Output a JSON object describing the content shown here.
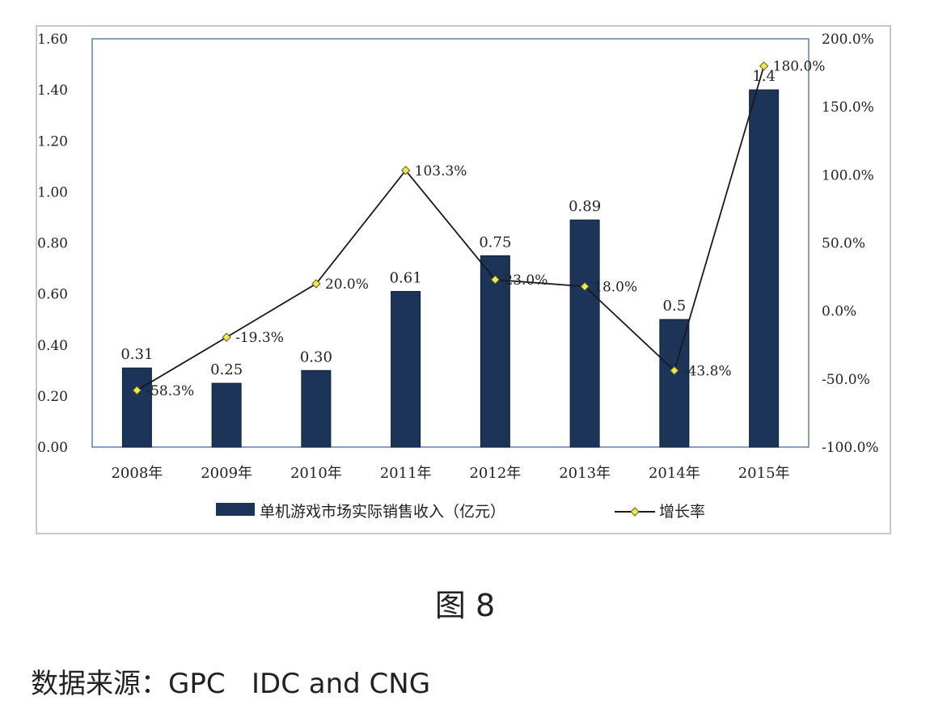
{
  "colors": {
    "bar": "#1b3458",
    "line": "#1a1a1a",
    "marker_fill": "#f2ee2a",
    "marker_stroke": "#555555",
    "axis_text": "#222222",
    "frame": "#c7c7c7",
    "plot_border": "#5b80b8"
  },
  "chart_data": {
    "type": "bar",
    "categories": [
      "2008年",
      "2009年",
      "2010年",
      "2011年",
      "2012年",
      "2013年",
      "2014年",
      "2015年"
    ],
    "series": [
      {
        "name": "单机游戏市场实际销售收入（亿元）",
        "type": "bar",
        "axis": "left",
        "values": [
          0.31,
          0.25,
          0.3,
          0.61,
          0.75,
          0.89,
          0.5,
          1.4
        ],
        "labels": [
          "0.31",
          "0.25",
          "0.30",
          "0.61",
          "0.75",
          "0.89",
          "0.5",
          "1.4"
        ]
      },
      {
        "name": "增长率",
        "type": "line",
        "axis": "right",
        "values": [
          -58.3,
          -19.3,
          20.0,
          103.3,
          23.0,
          18.0,
          -43.8,
          180.0
        ],
        "labels": [
          "-58.3%",
          "-19.3%",
          "20.0%",
          "103.3%",
          "23.0%",
          "18.0%",
          "-43.8%",
          "180.0%"
        ]
      }
    ],
    "ylim": [
      0,
      1.6
    ],
    "y_ticks": [
      0,
      0.2,
      0.4,
      0.6,
      0.8,
      1.0,
      1.2,
      1.4,
      1.6
    ],
    "y_tick_labels": [
      "0.00",
      "0.20",
      "0.40",
      "0.60",
      "0.80",
      "1.00",
      "1.20",
      "1.40",
      "1.60"
    ],
    "y2lim": [
      -100,
      200
    ],
    "y2_ticks": [
      -100,
      -50,
      0,
      50,
      100,
      150,
      200
    ],
    "y2_tick_labels": [
      "-100.0%",
      "-50.0%",
      "0.0%",
      "50.0%",
      "100.0%",
      "150.0%",
      "200.0%"
    ],
    "legend_position": "bottom",
    "grid": false,
    "title": "",
    "xlabel": "",
    "ylabel": ""
  },
  "caption": "图 8",
  "source": "数据来源：GPC   IDC and CNG"
}
